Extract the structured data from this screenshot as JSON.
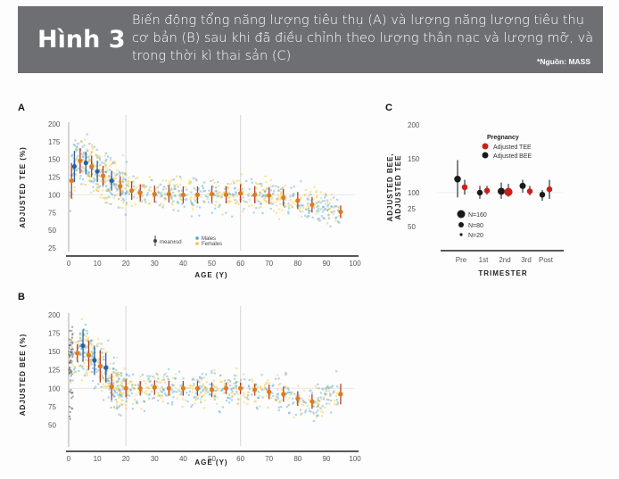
{
  "header": {
    "figure_label": "Hình 3",
    "caption": "Biến động tổng năng lượng tiêu thụ (A) và lượng năng lượng tiêu thụ cơ bản (B) sau khi đã điều chỉnh theo lượng thân nạc và lượng mỡ, và trong thời kì thai sản (C)",
    "source": "*Nguồn: MASS"
  },
  "colors": {
    "banner": "#6e6f73",
    "males": "#4ea3d8",
    "females": "#f2c530",
    "mean_orange": "#e07a1f",
    "mean_blue": "#2a5fa8",
    "tee": "#c9201c",
    "bee": "#1a1a1a"
  },
  "chart_data": [
    {
      "panel": "A",
      "type": "scatter",
      "xlabel": "AGE (Y)",
      "ylabel": "ADJUSTED TEE (%)",
      "xlim": [
        0,
        100
      ],
      "ylim": [
        25,
        200
      ],
      "xticks": [
        "0",
        "10",
        "20",
        "30",
        "40",
        "50",
        "60",
        "70",
        "80",
        "90",
        "100"
      ],
      "yticks": [
        "200",
        "175",
        "150",
        "125",
        "100",
        "75",
        "50",
        "25"
      ],
      "legend": {
        "meansd": "mean±sd",
        "males": "Males",
        "females": "Females"
      },
      "means": {
        "x": [
          1,
          2,
          4,
          6,
          8,
          10,
          12,
          15,
          18,
          22,
          25,
          30,
          35,
          40,
          45,
          50,
          55,
          60,
          65,
          70,
          75,
          80,
          85,
          95
        ],
        "y": [
          120,
          140,
          148,
          145,
          140,
          133,
          127,
          120,
          112,
          106,
          103,
          101,
          101,
          100,
          100,
          101,
          100,
          102,
          100,
          99,
          96,
          92,
          86,
          76
        ],
        "sd": [
          25,
          22,
          18,
          16,
          15,
          15,
          14,
          14,
          14,
          13,
          12,
          12,
          12,
          12,
          12,
          12,
          12,
          13,
          12,
          12,
          12,
          12,
          11,
          9
        ]
      }
    },
    {
      "panel": "B",
      "type": "scatter",
      "xlabel": "AGE (Y)",
      "ylabel": "ADJUSTED BEE (%)",
      "xlim": [
        0,
        100
      ],
      "ylim": [
        25,
        200
      ],
      "xticks": [
        "0",
        "10",
        "20",
        "30",
        "40",
        "50",
        "60",
        "70",
        "80",
        "90",
        "100"
      ],
      "yticks": [
        "200",
        "175",
        "150",
        "125",
        "100",
        "75",
        "50"
      ],
      "means": {
        "x": [
          3,
          5,
          7,
          9,
          11,
          13,
          15,
          20,
          25,
          30,
          35,
          40,
          45,
          50,
          55,
          60,
          65,
          70,
          75,
          80,
          85,
          95
        ],
        "y": [
          148,
          158,
          145,
          138,
          130,
          128,
          102,
          100,
          100,
          101,
          100,
          100,
          100,
          98,
          100,
          100,
          98,
          95,
          92,
          86,
          82,
          92
        ],
        "sd": [
          12,
          22,
          20,
          20,
          22,
          20,
          18,
          12,
          10,
          10,
          10,
          10,
          10,
          10,
          8,
          8,
          8,
          10,
          10,
          10,
          10,
          14
        ]
      }
    },
    {
      "panel": "C",
      "type": "scatter",
      "xlabel": "TRIMESTER",
      "ylabel": "ADJUSTED BEE, ADJUSTED TEE",
      "categories": [
        "Pre",
        "1st",
        "2nd",
        "3rd",
        "Post"
      ],
      "ylim": [
        25,
        200
      ],
      "yticks": [
        "200",
        "150",
        "100",
        "50",
        "25"
      ],
      "legend_title": "Pregnancy",
      "series": [
        {
          "name": "Adjusted TEE",
          "values": [
            108,
            103,
            101,
            102,
            105
          ],
          "lo": [
            97,
            97,
            94,
            96,
            91
          ],
          "hi": [
            119,
            110,
            113,
            110,
            119
          ],
          "n": [
            60,
            60,
            120,
            60,
            60
          ]
        },
        {
          "name": "Adjusted BEE",
          "values": [
            120,
            100,
            102,
            110,
            97
          ],
          "lo": [
            93,
            91,
            91,
            100,
            88
          ],
          "hi": [
            148,
            110,
            115,
            119,
            104
          ],
          "n": [
            80,
            60,
            90,
            70,
            60
          ]
        }
      ],
      "size_legend": [
        "N=160",
        "N=80",
        "N=20"
      ]
    }
  ]
}
